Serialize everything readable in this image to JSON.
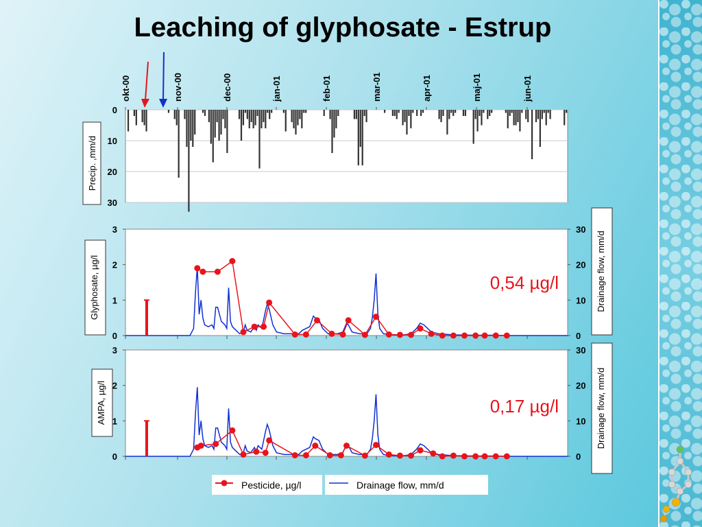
{
  "slide": {
    "title": "Leaching of glyphosate - Estrup"
  },
  "colors": {
    "precip": "#333333",
    "pesticide": "#e8141c",
    "drainage": "#1030d0",
    "arrow_red": "#e8141c",
    "arrow_blue": "#1030d0"
  },
  "chart_data": [
    {
      "id": "precip",
      "type": "bar",
      "ylabel": "Precip. ,mm/d",
      "ylim": [
        0,
        30
      ],
      "y_inverted": true,
      "yticks": [
        "0",
        "10",
        "20",
        "30"
      ],
      "months": [
        "okt-00",
        "nov-00",
        "dec-00",
        "jan-01",
        "feb-01",
        "mar-01",
        "apr-01",
        "maj-01",
        "jun-01"
      ],
      "values": [
        0,
        7,
        0,
        0,
        2,
        5,
        0,
        0,
        4,
        5,
        7,
        0,
        0,
        0,
        0,
        0,
        0,
        0,
        0,
        0,
        0,
        1,
        0,
        0,
        3,
        5,
        22,
        0,
        0,
        3,
        12,
        33,
        10,
        12,
        8,
        0,
        0,
        0,
        1,
        2,
        0,
        4,
        11,
        17,
        9,
        4,
        10,
        8,
        3,
        6,
        14,
        0,
        0,
        0,
        0,
        0,
        3,
        10,
        5,
        1,
        3,
        6,
        4,
        6,
        5,
        2,
        19,
        6,
        4,
        6,
        1,
        3,
        1,
        0,
        0,
        0,
        0,
        0,
        1,
        7,
        0,
        0,
        4,
        6,
        8,
        5,
        3,
        6,
        1,
        1,
        0,
        0,
        0,
        0,
        0,
        0,
        0,
        0,
        2,
        0,
        0,
        3,
        14,
        9,
        6,
        2,
        0,
        0,
        0,
        0,
        0,
        0,
        0,
        3,
        3,
        18,
        12,
        18,
        2,
        4,
        0,
        0,
        0,
        0,
        0,
        0,
        0,
        0,
        1,
        0,
        0,
        0,
        2,
        2,
        3,
        1,
        0,
        5,
        4,
        8,
        2,
        6,
        1,
        0,
        2,
        0,
        2,
        1,
        0,
        0,
        0,
        0,
        0,
        0,
        0,
        3,
        4,
        2,
        0,
        8,
        3,
        1,
        2,
        1,
        0,
        0,
        0,
        2,
        2,
        0,
        0,
        0,
        11,
        3,
        7,
        2,
        5,
        1,
        0,
        3,
        2,
        1,
        0,
        0,
        0,
        0,
        0,
        0,
        1,
        6,
        2,
        1,
        5,
        5,
        4,
        7,
        1,
        0,
        3,
        4,
        0,
        16,
        0,
        4,
        3,
        12,
        3,
        1,
        5,
        1,
        3,
        0,
        0,
        0,
        0,
        0,
        0,
        5,
        1
      ]
    },
    {
      "id": "glyphosate",
      "type": "line",
      "ylabel": "Glyphosate, µg/l",
      "ylabel2": "Drainage flow, mm/d",
      "ylim": [
        0,
        3
      ],
      "ylim2": [
        0,
        30
      ],
      "yticks": [
        "0",
        "1",
        "2",
        "3"
      ],
      "yticks2": [
        "0",
        "10",
        "20",
        "30"
      ],
      "application_bar": 1.0,
      "annotation": "0,54 µg/l",
      "pesticide": [
        {
          "day": 39,
          "value": 1.9
        },
        {
          "day": 42,
          "value": 1.8
        },
        {
          "day": 50,
          "value": 1.8
        },
        {
          "day": 58,
          "value": 2.1
        },
        {
          "day": 64,
          "value": 0.1
        },
        {
          "day": 70,
          "value": 0.25
        },
        {
          "day": 75,
          "value": 0.25
        },
        {
          "day": 78,
          "value": 0.93
        },
        {
          "day": 92,
          "value": 0.03
        },
        {
          "day": 98,
          "value": 0.03
        },
        {
          "day": 104,
          "value": 0.43
        },
        {
          "day": 112,
          "value": 0.05
        },
        {
          "day": 118,
          "value": 0.03
        },
        {
          "day": 121,
          "value": 0.43
        },
        {
          "day": 130,
          "value": 0.02
        },
        {
          "day": 136,
          "value": 0.53
        },
        {
          "day": 143,
          "value": 0.03
        },
        {
          "day": 149,
          "value": 0.02
        },
        {
          "day": 155,
          "value": 0.02
        },
        {
          "day": 160,
          "value": 0.2
        },
        {
          "day": 166,
          "value": 0.05
        },
        {
          "day": 172,
          "value": 0.0
        },
        {
          "day": 178,
          "value": 0.0
        },
        {
          "day": 184,
          "value": 0.0
        },
        {
          "day": 190,
          "value": 0.0
        },
        {
          "day": 195,
          "value": 0.0
        },
        {
          "day": 201,
          "value": 0.0
        },
        {
          "day": 207,
          "value": 0.0
        }
      ]
    },
    {
      "id": "ampa",
      "type": "line",
      "ylabel": "AMPA, µg/l",
      "ylabel2": "Drainage flow, mm/d",
      "ylim": [
        0,
        3
      ],
      "ylim2": [
        0,
        30
      ],
      "yticks": [
        "0",
        "1",
        "2",
        "3"
      ],
      "yticks2": [
        "0",
        "10",
        "20",
        "30"
      ],
      "application_bar": 1.0,
      "annotation": "0,17 µg/l",
      "pesticide": [
        {
          "day": 39,
          "value": 0.25
        },
        {
          "day": 41,
          "value": 0.3
        },
        {
          "day": 49,
          "value": 0.35
        },
        {
          "day": 58,
          "value": 0.73
        },
        {
          "day": 64,
          "value": 0.05
        },
        {
          "day": 71,
          "value": 0.13
        },
        {
          "day": 76,
          "value": 0.1
        },
        {
          "day": 78,
          "value": 0.45
        },
        {
          "day": 92,
          "value": 0.03
        },
        {
          "day": 98,
          "value": 0.03
        },
        {
          "day": 103,
          "value": 0.3
        },
        {
          "day": 111,
          "value": 0.03
        },
        {
          "day": 117,
          "value": 0.03
        },
        {
          "day": 120,
          "value": 0.3
        },
        {
          "day": 130,
          "value": 0.02
        },
        {
          "day": 136,
          "value": 0.32
        },
        {
          "day": 143,
          "value": 0.05
        },
        {
          "day": 149,
          "value": 0.02
        },
        {
          "day": 155,
          "value": 0.02
        },
        {
          "day": 160,
          "value": 0.17
        },
        {
          "day": 167,
          "value": 0.08
        },
        {
          "day": 172,
          "value": 0.0
        },
        {
          "day": 178,
          "value": 0.02
        },
        {
          "day": 184,
          "value": 0.0
        },
        {
          "day": 190,
          "value": 0.0
        },
        {
          "day": 195,
          "value": 0.0
        },
        {
          "day": 201,
          "value": 0.0
        },
        {
          "day": 207,
          "value": 0.0
        }
      ]
    }
  ],
  "drainage": [
    {
      "day": 0,
      "value": 0
    },
    {
      "day": 35,
      "value": 0
    },
    {
      "day": 37,
      "value": 2
    },
    {
      "day": 38,
      "value": 12
    },
    {
      "day": 39,
      "value": 19.5
    },
    {
      "day": 40,
      "value": 6
    },
    {
      "day": 41,
      "value": 10
    },
    {
      "day": 42,
      "value": 5
    },
    {
      "day": 43,
      "value": 3
    },
    {
      "day": 45,
      "value": 2.5
    },
    {
      "day": 47,
      "value": 3
    },
    {
      "day": 48,
      "value": 2
    },
    {
      "day": 49,
      "value": 8
    },
    {
      "day": 50,
      "value": 8
    },
    {
      "day": 52,
      "value": 4
    },
    {
      "day": 54,
      "value": 3
    },
    {
      "day": 55,
      "value": 2
    },
    {
      "day": 56,
      "value": 13.5
    },
    {
      "day": 57,
      "value": 4
    },
    {
      "day": 58,
      "value": 2.5
    },
    {
      "day": 60,
      "value": 1.5
    },
    {
      "day": 62,
      "value": 0.5
    },
    {
      "day": 64,
      "value": 1
    },
    {
      "day": 65,
      "value": 3
    },
    {
      "day": 66,
      "value": 1.5
    },
    {
      "day": 68,
      "value": 1
    },
    {
      "day": 70,
      "value": 2.5
    },
    {
      "day": 71,
      "value": 1.5
    },
    {
      "day": 72,
      "value": 3
    },
    {
      "day": 74,
      "value": 2
    },
    {
      "day": 76,
      "value": 7
    },
    {
      "day": 77,
      "value": 9
    },
    {
      "day": 78,
      "value": 7.5
    },
    {
      "day": 80,
      "value": 3
    },
    {
      "day": 82,
      "value": 1
    },
    {
      "day": 86,
      "value": 0.5
    },
    {
      "day": 90,
      "value": 0.5
    },
    {
      "day": 94,
      "value": 0.5
    },
    {
      "day": 96,
      "value": 1.5
    },
    {
      "day": 98,
      "value": 2
    },
    {
      "day": 100,
      "value": 2.5
    },
    {
      "day": 102,
      "value": 5.5
    },
    {
      "day": 103,
      "value": 5
    },
    {
      "day": 105,
      "value": 4.5
    },
    {
      "day": 107,
      "value": 2
    },
    {
      "day": 110,
      "value": 0.5
    },
    {
      "day": 115,
      "value": 0.5
    },
    {
      "day": 118,
      "value": 1
    },
    {
      "day": 120,
      "value": 3.5
    },
    {
      "day": 121,
      "value": 3
    },
    {
      "day": 123,
      "value": 1
    },
    {
      "day": 127,
      "value": 0.5
    },
    {
      "day": 131,
      "value": 0.5
    },
    {
      "day": 133,
      "value": 2
    },
    {
      "day": 134,
      "value": 5
    },
    {
      "day": 135,
      "value": 10
    },
    {
      "day": 136,
      "value": 17.5
    },
    {
      "day": 137,
      "value": 6
    },
    {
      "day": 138,
      "value": 2
    },
    {
      "day": 140,
      "value": 0.5
    },
    {
      "day": 145,
      "value": 0.2
    },
    {
      "day": 150,
      "value": 0.1
    },
    {
      "day": 155,
      "value": 0.5
    },
    {
      "day": 158,
      "value": 2
    },
    {
      "day": 160,
      "value": 3.5
    },
    {
      "day": 162,
      "value": 3
    },
    {
      "day": 164,
      "value": 2
    },
    {
      "day": 166,
      "value": 1
    },
    {
      "day": 170,
      "value": 0.5
    },
    {
      "day": 178,
      "value": 0.2
    },
    {
      "day": 190,
      "value": 0.1
    },
    {
      "day": 200,
      "value": 0.1
    },
    {
      "day": 210,
      "value": 0
    },
    {
      "day": 240,
      "value": 0
    }
  ],
  "legend": {
    "pesticide_label": "Pesticide, µg/l",
    "drainage_label": "Drainage flow, mm/d"
  }
}
